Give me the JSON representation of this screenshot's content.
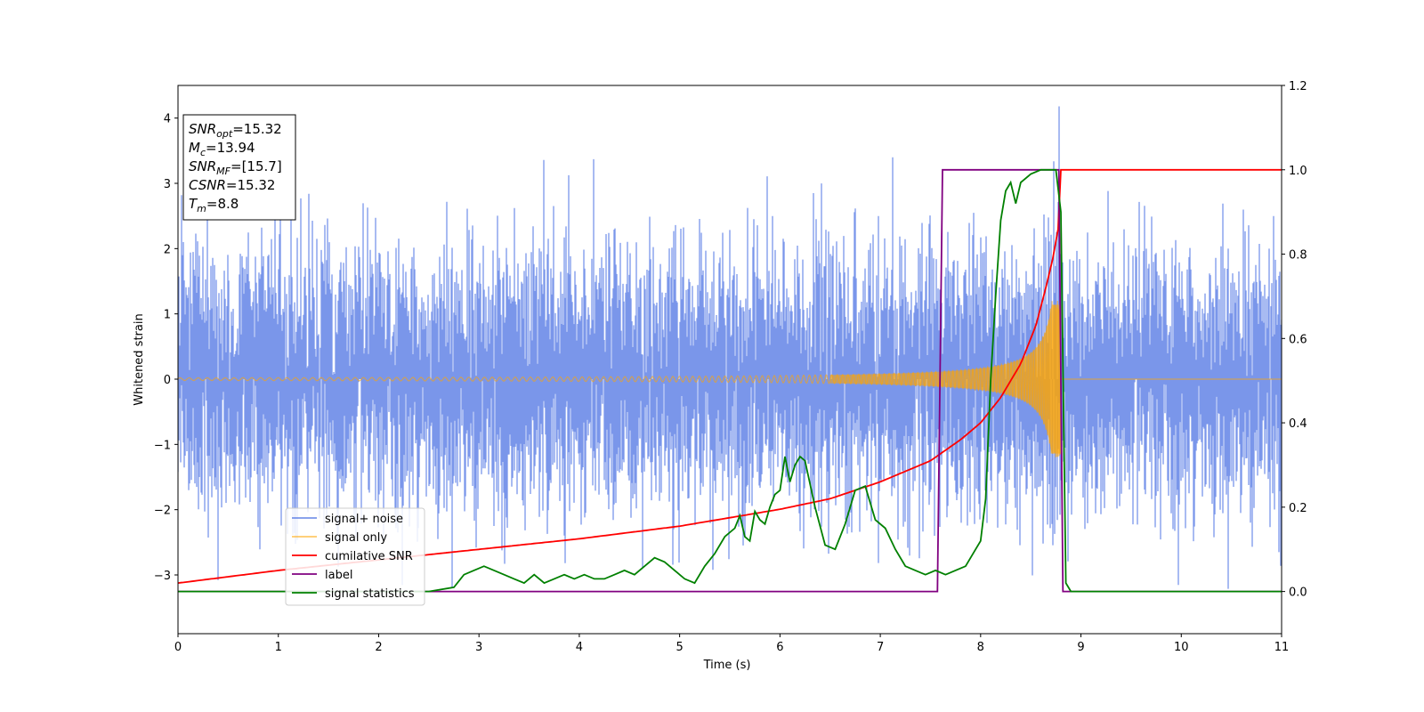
{
  "chart_data": {
    "type": "line",
    "title": "",
    "xlabel": "Time (s)",
    "ylabel_left": "Whitened strain",
    "ylabel_right": "",
    "xlim": [
      0,
      11
    ],
    "ylim_left": [
      -3.9,
      4.5
    ],
    "ylim_right": [
      -0.1,
      1.2
    ],
    "x_ticks": [
      0,
      1,
      2,
      3,
      4,
      5,
      6,
      7,
      8,
      9,
      10,
      11
    ],
    "y_ticks_left": [
      -3,
      -2,
      -1,
      0,
      1,
      2,
      3,
      4
    ],
    "y_ticks_left_labels": [
      "−3",
      "−2",
      "−1",
      "0",
      "1",
      "2",
      "3",
      "4"
    ],
    "y_ticks_right": [
      0.0,
      0.2,
      0.4,
      0.6,
      0.8,
      1.0,
      1.2
    ],
    "y_ticks_right_labels": [
      "0.0",
      "0.2",
      "0.4",
      "0.6",
      "0.8",
      "1.0",
      "1.2"
    ],
    "grid": false,
    "legend_position": "lower-left",
    "colors": {
      "signal_noise": "#4169e1",
      "signal_only": "#ffa500",
      "cumulative_snr": "#ff0000",
      "label": "#800080",
      "signal_statistics": "#008000"
    },
    "series": [
      {
        "name": "signal+ noise",
        "axis": "left",
        "description_values": "whitened noise, roughly uniform amplitude about ±2.5 with spikes to about 3.4; peak 4.2 near t=8.78",
        "envelope": [
          -2.6,
          2.6
        ],
        "peak": {
          "x": 8.78,
          "y": 4.18
        }
      },
      {
        "name": "signal only",
        "axis": "left",
        "chirp_start_amplitude": 0.02,
        "chirp_end_time": 8.8,
        "chirp_peak_amplitude": 1.2,
        "start_frequency_hz": 11
      },
      {
        "name": "cumilative SNR",
        "axis": "right",
        "x": [
          0,
          1,
          2,
          3,
          4,
          5,
          6,
          6.5,
          7,
          7.5,
          7.8,
          8.0,
          8.2,
          8.4,
          8.55,
          8.65,
          8.72,
          8.78,
          8.8,
          11
        ],
        "y": [
          0.02,
          0.05,
          0.075,
          0.1,
          0.125,
          0.155,
          0.195,
          0.22,
          0.26,
          0.31,
          0.36,
          0.4,
          0.46,
          0.54,
          0.63,
          0.72,
          0.79,
          0.87,
          1.0,
          1.0
        ]
      },
      {
        "name": "label",
        "axis": "right",
        "x": [
          0,
          7.57,
          7.62,
          8.78,
          8.82,
          11
        ],
        "y": [
          0,
          0,
          1,
          1,
          0,
          0
        ]
      },
      {
        "name": "signal statistics",
        "axis": "right",
        "x": [
          0,
          2.5,
          2.75,
          2.85,
          2.95,
          3.05,
          3.15,
          3.25,
          3.35,
          3.45,
          3.55,
          3.65,
          3.75,
          3.85,
          3.95,
          4.05,
          4.15,
          4.25,
          4.35,
          4.45,
          4.55,
          4.65,
          4.75,
          4.85,
          4.95,
          5.05,
          5.15,
          5.25,
          5.35,
          5.45,
          5.55,
          5.6,
          5.65,
          5.7,
          5.75,
          5.8,
          5.85,
          5.9,
          5.95,
          6.0,
          6.05,
          6.1,
          6.15,
          6.2,
          6.25,
          6.35,
          6.45,
          6.55,
          6.65,
          6.75,
          6.85,
          6.95,
          7.05,
          7.15,
          7.25,
          7.35,
          7.45,
          7.55,
          7.65,
          7.75,
          7.85,
          7.95,
          8.0,
          8.05,
          8.1,
          8.15,
          8.2,
          8.25,
          8.3,
          8.35,
          8.4,
          8.5,
          8.6,
          8.7,
          8.75,
          8.8,
          8.85,
          8.9,
          11
        ],
        "y": [
          0.0,
          0.0,
          0.01,
          0.04,
          0.05,
          0.06,
          0.05,
          0.04,
          0.03,
          0.02,
          0.04,
          0.02,
          0.03,
          0.04,
          0.03,
          0.04,
          0.03,
          0.03,
          0.04,
          0.05,
          0.04,
          0.06,
          0.08,
          0.07,
          0.05,
          0.03,
          0.02,
          0.06,
          0.09,
          0.13,
          0.15,
          0.18,
          0.13,
          0.12,
          0.19,
          0.17,
          0.16,
          0.2,
          0.23,
          0.24,
          0.32,
          0.26,
          0.3,
          0.32,
          0.31,
          0.2,
          0.11,
          0.1,
          0.16,
          0.24,
          0.25,
          0.17,
          0.15,
          0.1,
          0.06,
          0.05,
          0.04,
          0.05,
          0.04,
          0.05,
          0.06,
          0.1,
          0.12,
          0.22,
          0.5,
          0.7,
          0.88,
          0.95,
          0.97,
          0.92,
          0.97,
          0.99,
          1.0,
          1.0,
          1.0,
          0.9,
          0.02,
          0.0,
          0.0
        ]
      }
    ],
    "info_box": {
      "lines": [
        {
          "main": "SNR",
          "sub": "opt",
          "value": "=15.32"
        },
        {
          "main": "M",
          "sub": "c",
          "value": "=13.94"
        },
        {
          "main": "SNR",
          "sub": "MF",
          "value": "=[15.7]"
        },
        {
          "main": "CSNR",
          "sub": "",
          "value": "=15.32"
        },
        {
          "main": "T",
          "sub": "m",
          "value": "=8.8"
        }
      ]
    }
  }
}
